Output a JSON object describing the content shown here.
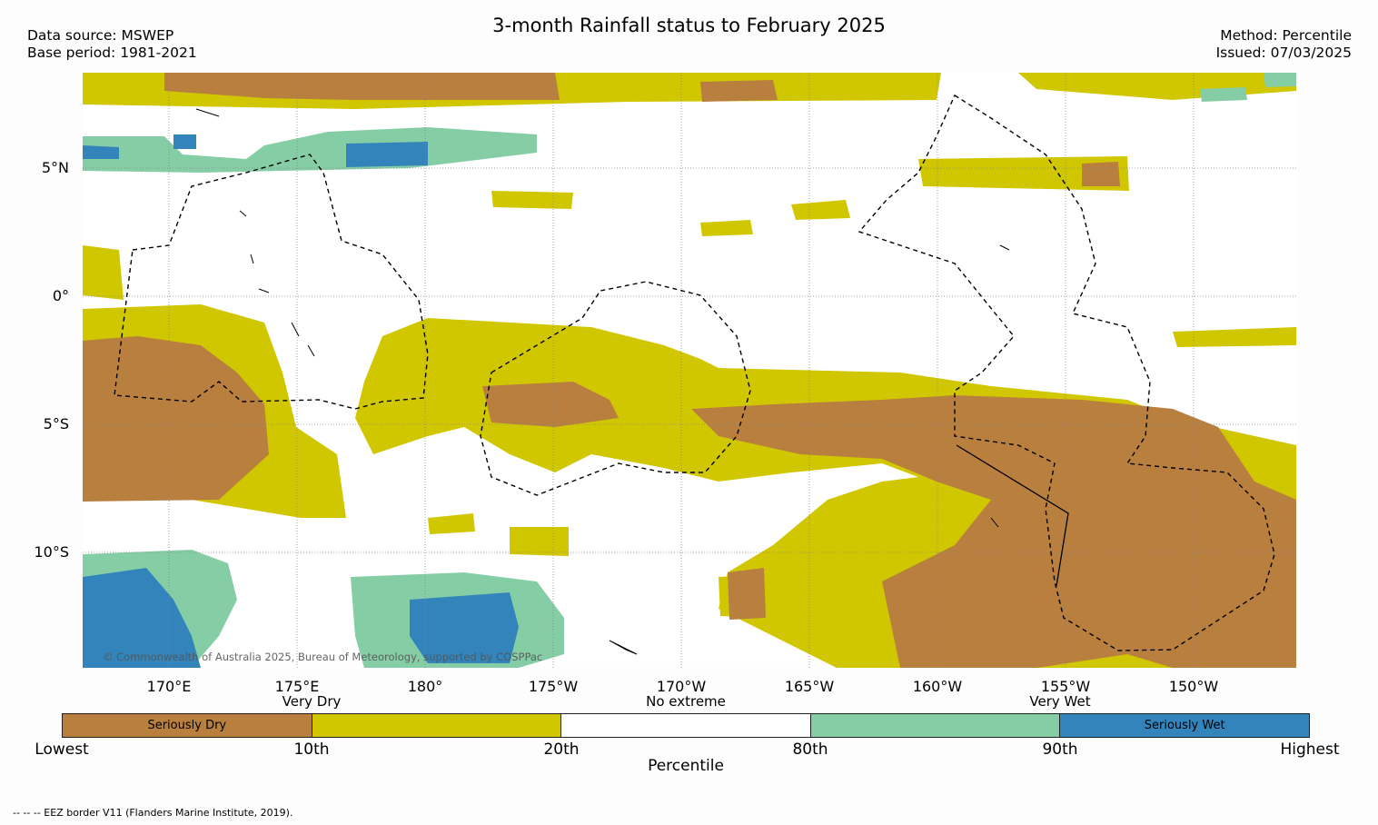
{
  "title": "3-month Rainfall status to February 2025",
  "data_source": "Data source: MSWEP",
  "base_period": "Base period: 1981-2021",
  "method": "Method: Percentile",
  "issued": "Issued: 07/03/2025",
  "lat_labels": [
    "5°N",
    "0°",
    "5°S",
    "10°S"
  ],
  "lon_labels": [
    "170°E",
    "175°E",
    "180°",
    "175°W",
    "170°W",
    "165°W",
    "160°W",
    "155°W",
    "150°W"
  ],
  "copyright": "© Commonwealth of Australia 2025, Bureau of Meteorology, supported by COSPPac",
  "legend": {
    "categories": [
      {
        "text": "Very Dry"
      },
      {
        "text": "No extreme"
      },
      {
        "text": "Very Wet"
      }
    ],
    "segments": [
      {
        "label": "Seriously Dry",
        "color": "#b87f3f"
      },
      {
        "label": "",
        "color": "#d0c700"
      },
      {
        "label": "",
        "color": "#ffffff"
      },
      {
        "label": "",
        "color": "#84cda5"
      },
      {
        "label": "Seriously Wet",
        "color": "#3284bb"
      }
    ],
    "ticks": [
      "Lowest",
      "10th",
      "20th",
      "80th",
      "90th",
      "Highest"
    ],
    "axis_title": "Percentile"
  },
  "footnote": "-- -- -- EEZ border V11 (Flanders Marine Institute, 2019).",
  "colors": {
    "seriously_dry": "#b87f3f",
    "very_dry": "#d0c700",
    "no_extreme": "#ffffff",
    "very_wet": "#84cda5",
    "seriously_wet": "#3284bb"
  }
}
